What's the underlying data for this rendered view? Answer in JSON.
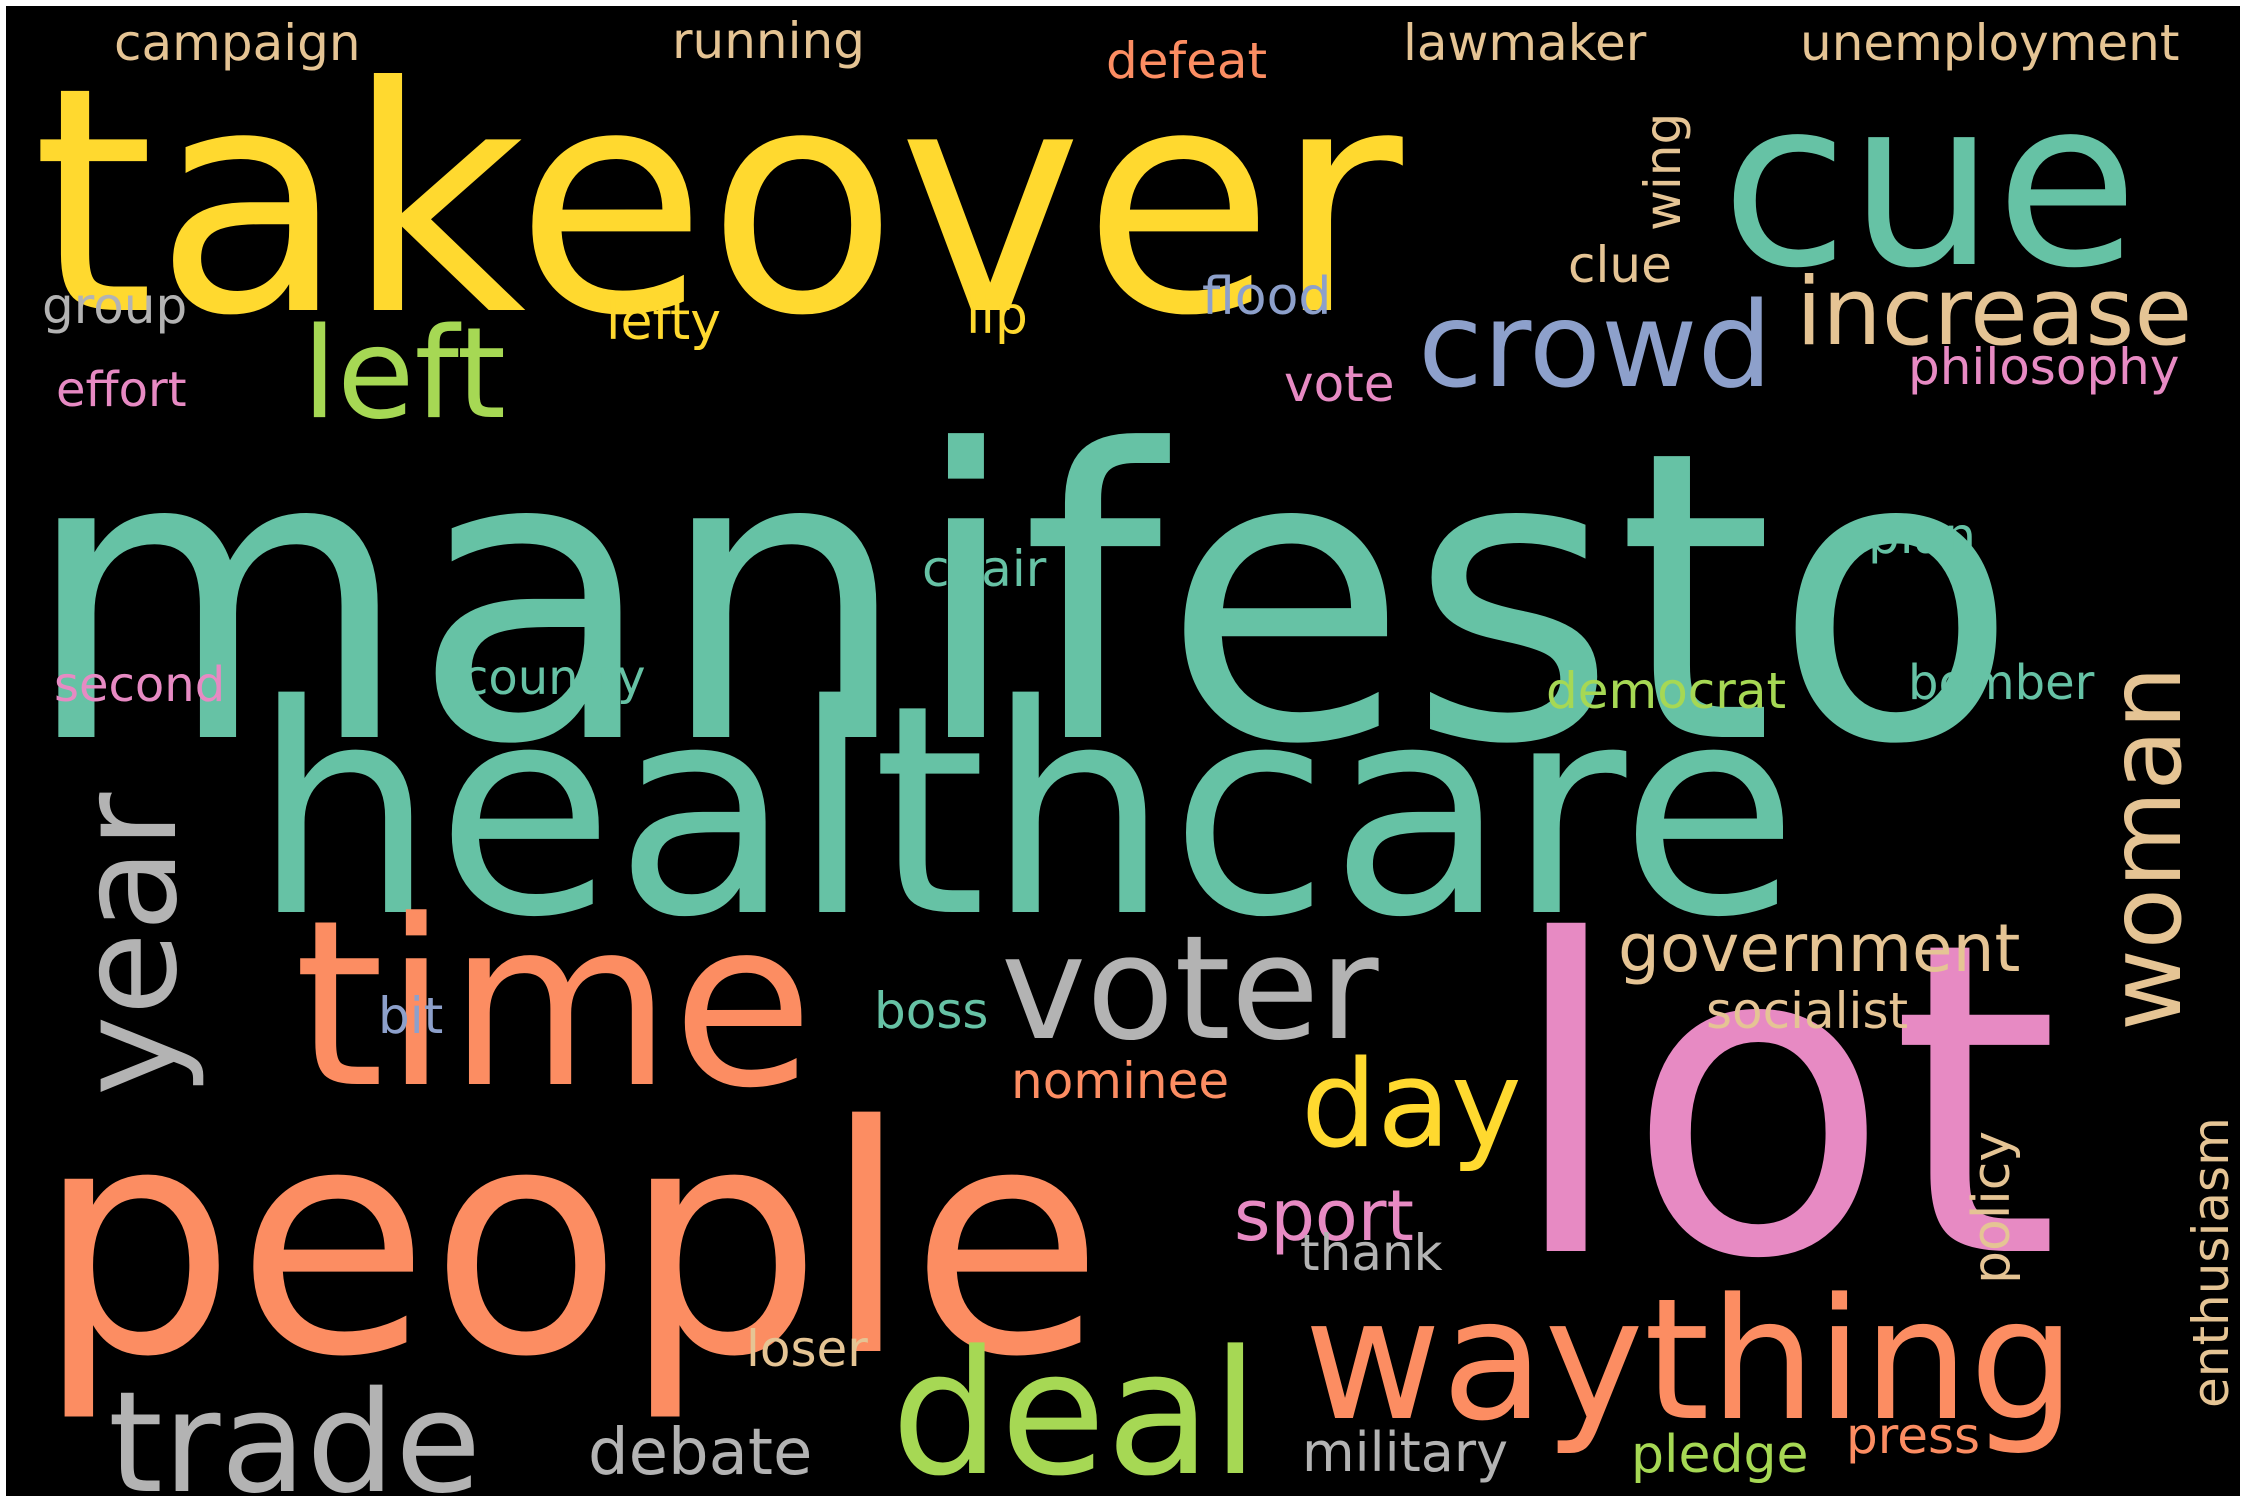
{
  "colors": {
    "background": "#000000",
    "frame": "#ffffff",
    "teal": "#66c2a5",
    "orange": "#fc8d62",
    "blue": "#8da0cb",
    "pink": "#e78ac3",
    "green": "#a6d854",
    "yellow": "#ffd92f",
    "tan": "#e5c494",
    "gray": "#b3b3b3"
  },
  "words": [
    {
      "key": "manifesto",
      "text": "manifesto",
      "color": "#66c2a5",
      "vertical": false
    },
    {
      "key": "takeover",
      "text": "takeover",
      "color": "#ffd92f",
      "vertical": false
    },
    {
      "key": "cue",
      "text": "cue",
      "color": "#66c2a5",
      "vertical": false
    },
    {
      "key": "healthcare",
      "text": "healthcare",
      "color": "#66c2a5",
      "vertical": false
    },
    {
      "key": "lot",
      "text": "lot",
      "color": "#e78ac3",
      "vertical": false
    },
    {
      "key": "people",
      "text": "people",
      "color": "#fc8d62",
      "vertical": false
    },
    {
      "key": "time",
      "text": "time",
      "color": "#fc8d62",
      "vertical": false
    },
    {
      "key": "waything",
      "text": "waything",
      "color": "#fc8d62",
      "vertical": false
    },
    {
      "key": "deal",
      "text": "deal",
      "color": "#a6d854",
      "vertical": false
    },
    {
      "key": "trade",
      "text": "trade",
      "color": "#b3b3b3",
      "vertical": false
    },
    {
      "key": "voter",
      "text": "voter",
      "color": "#b3b3b3",
      "vertical": false
    },
    {
      "key": "year",
      "text": "year",
      "color": "#b3b3b3",
      "vertical": true
    },
    {
      "key": "woman",
      "text": "woman",
      "color": "#e5c494",
      "vertical": true
    },
    {
      "key": "left",
      "text": "left",
      "color": "#a6d854",
      "vertical": false
    },
    {
      "key": "crowd",
      "text": "crowd",
      "color": "#8da0cb",
      "vertical": false
    },
    {
      "key": "increase",
      "text": "increase",
      "color": "#e5c494",
      "vertical": false
    },
    {
      "key": "day",
      "text": "day",
      "color": "#ffd92f",
      "vertical": false
    },
    {
      "key": "government",
      "text": "government",
      "color": "#e5c494",
      "vertical": false
    },
    {
      "key": "sport",
      "text": "sport",
      "color": "#e78ac3",
      "vertical": false
    },
    {
      "key": "debate",
      "text": "debate",
      "color": "#b3b3b3",
      "vertical": false
    },
    {
      "key": "military",
      "text": "military",
      "color": "#b3b3b3",
      "vertical": false
    },
    {
      "key": "socialist",
      "text": "socialist",
      "color": "#e5c494",
      "vertical": false
    },
    {
      "key": "nominee",
      "text": "nominee",
      "color": "#fc8d62",
      "vertical": false
    },
    {
      "key": "boss",
      "text": "boss",
      "color": "#66c2a5",
      "vertical": false
    },
    {
      "key": "bit",
      "text": "bit",
      "color": "#8da0cb",
      "vertical": false
    },
    {
      "key": "thank",
      "text": "thank",
      "color": "#b3b3b3",
      "vertical": false
    },
    {
      "key": "loser",
      "text": "loser",
      "color": "#e5c494",
      "vertical": false
    },
    {
      "key": "press",
      "text": "press",
      "color": "#fc8d62",
      "vertical": false
    },
    {
      "key": "pledge",
      "text": "pledge",
      "color": "#a6d854",
      "vertical": false
    },
    {
      "key": "policy",
      "text": "policy",
      "color": "#e5c494",
      "vertical": true
    },
    {
      "key": "enthusiasm",
      "text": "enthusiasm",
      "color": "#e5c494",
      "vertical": true
    },
    {
      "key": "campaign",
      "text": "campaign",
      "color": "#e5c494",
      "vertical": false
    },
    {
      "key": "running",
      "text": "running",
      "color": "#e5c494",
      "vertical": false
    },
    {
      "key": "defeat",
      "text": "defeat",
      "color": "#fc8d62",
      "vertical": false
    },
    {
      "key": "lawmaker",
      "text": "lawmaker",
      "color": "#e5c494",
      "vertical": false
    },
    {
      "key": "unemployment",
      "text": "unemployment",
      "color": "#e5c494",
      "vertical": false
    },
    {
      "key": "wing",
      "text": "wing",
      "color": "#e5c494",
      "vertical": true
    },
    {
      "key": "clue",
      "text": "clue",
      "color": "#e5c494",
      "vertical": false
    },
    {
      "key": "flood",
      "text": "flood",
      "color": "#8da0cb",
      "vertical": false
    },
    {
      "key": "lip",
      "text": "lip",
      "color": "#ffd92f",
      "vertical": false
    },
    {
      "key": "lefty",
      "text": "lefty",
      "color": "#ffd92f",
      "vertical": false
    },
    {
      "key": "group",
      "text": "group",
      "color": "#b3b3b3",
      "vertical": false
    },
    {
      "key": "effort",
      "text": "effort",
      "color": "#e78ac3",
      "vertical": false
    },
    {
      "key": "vote",
      "text": "vote",
      "color": "#e78ac3",
      "vertical": false
    },
    {
      "key": "philosophy",
      "text": "philosophy",
      "color": "#e78ac3",
      "vertical": false
    },
    {
      "key": "plan",
      "text": "plan",
      "color": "#66c2a5",
      "vertical": false
    },
    {
      "key": "chair",
      "text": "chair",
      "color": "#66c2a5",
      "vertical": false
    },
    {
      "key": "second",
      "text": "second",
      "color": "#e78ac3",
      "vertical": false
    },
    {
      "key": "country",
      "text": "country",
      "color": "#66c2a5",
      "vertical": false
    },
    {
      "key": "democrat",
      "text": "democrat",
      "color": "#a6d854",
      "vertical": false
    },
    {
      "key": "bomber",
      "text": "bomber",
      "color": "#66c2a5",
      "vertical": false
    }
  ]
}
